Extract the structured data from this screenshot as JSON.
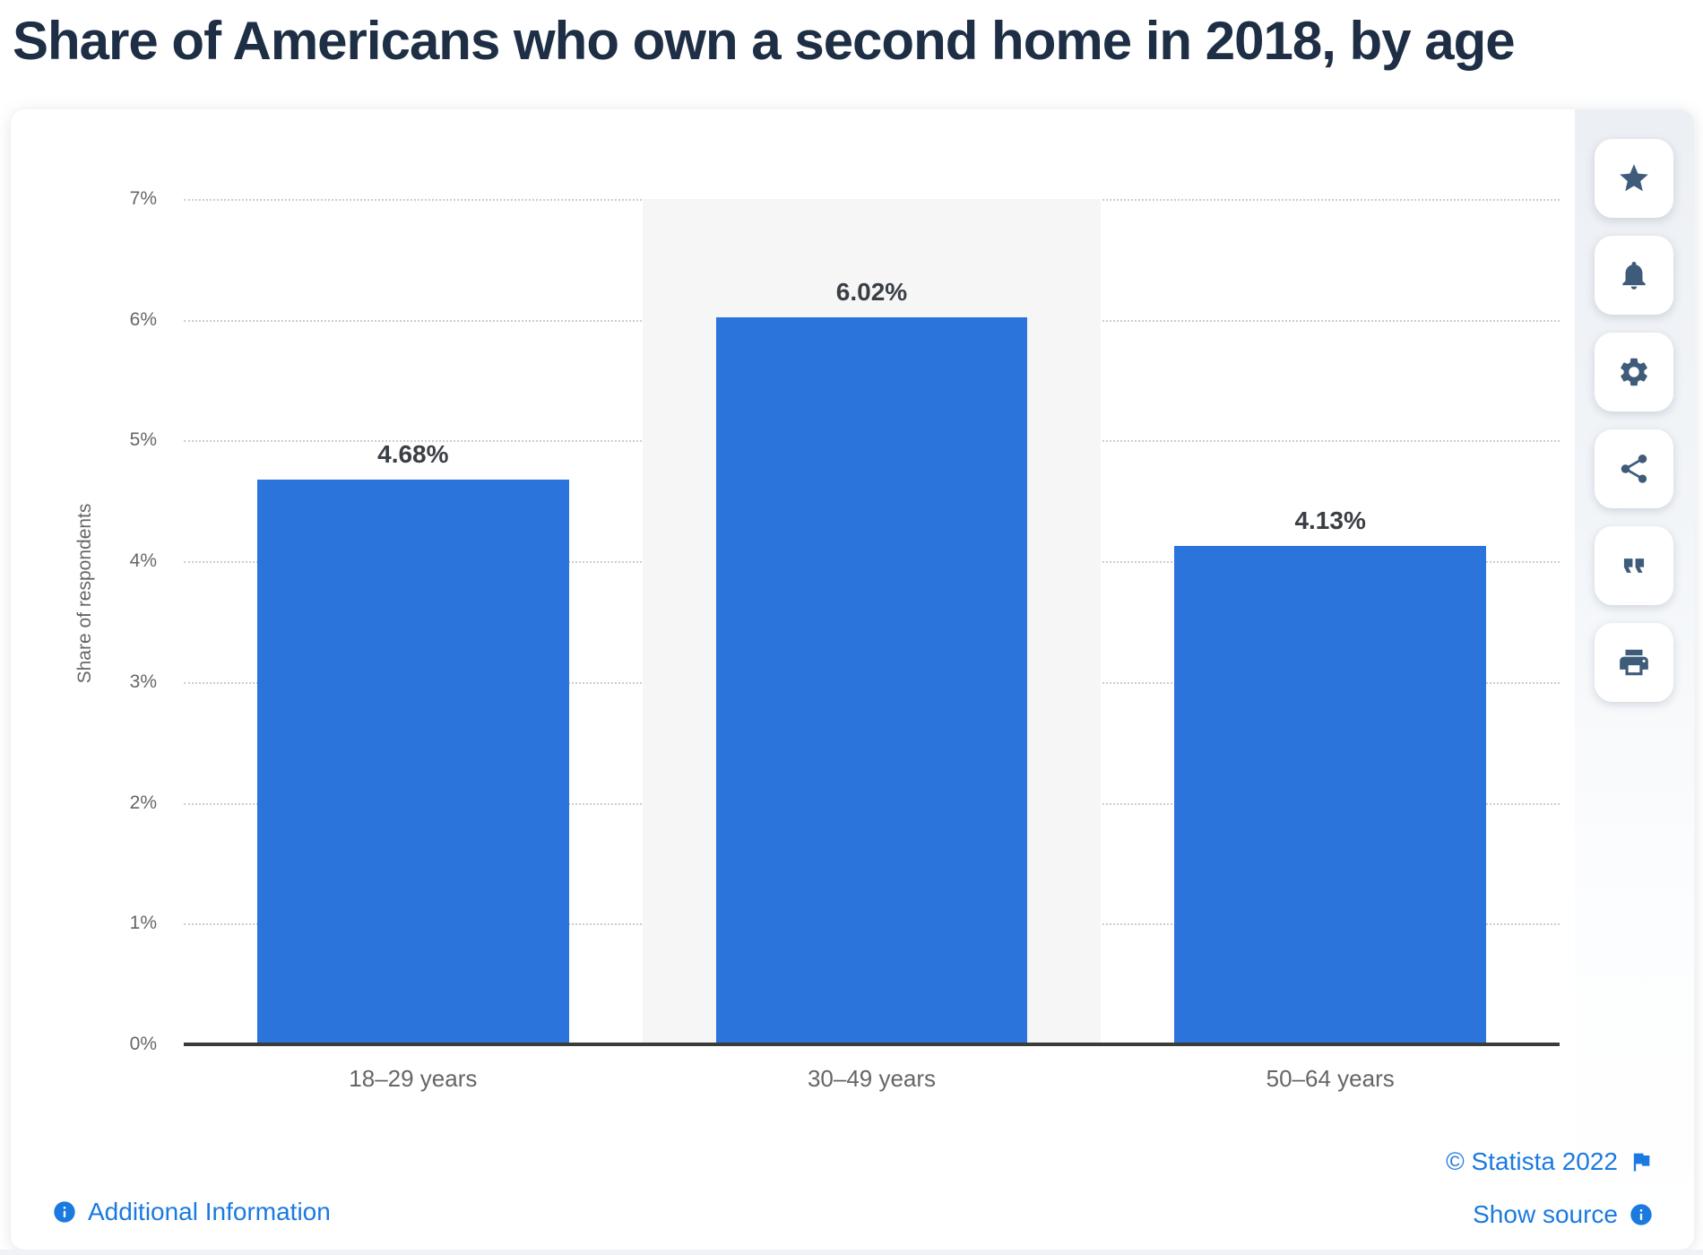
{
  "page": {
    "title": "Share of Americans who own a second home in 2018, by age"
  },
  "chart_data": {
    "type": "bar",
    "title": "Share of Americans who own a second home in 2018, by age",
    "categories": [
      "18–29 years",
      "30–49 years",
      "50–64 years"
    ],
    "values": [
      4.68,
      6.02,
      4.13
    ],
    "value_labels": [
      "4.68%",
      "6.02%",
      "4.13%"
    ],
    "xlabel": "",
    "ylabel": "Share of respondents",
    "ylim": [
      0,
      7
    ],
    "yticks": [
      "0%",
      "1%",
      "2%",
      "3%",
      "4%",
      "5%",
      "6%",
      "7%"
    ],
    "grid": "horizontal-dotted",
    "legend": false,
    "highlighted_category_index": 1,
    "colors": {
      "bar": "#2b74db",
      "plot_band": "#f6f6f7",
      "gridline": "#cccccc",
      "axis_line": "#3b3b3b",
      "tick_text": "#666666",
      "value_label_text": "#3a3f45"
    }
  },
  "toolbar": {
    "buttons": [
      {
        "name": "favorite-button",
        "icon": "star-icon"
      },
      {
        "name": "alerts-button",
        "icon": "bell-icon"
      },
      {
        "name": "settings-button",
        "icon": "gear-icon"
      },
      {
        "name": "share-button",
        "icon": "share-icon"
      },
      {
        "name": "cite-button",
        "icon": "quote-icon"
      },
      {
        "name": "print-button",
        "icon": "printer-icon"
      }
    ]
  },
  "footer": {
    "additional_information": "Additional Information",
    "copyright": "© Statista 2022",
    "show_source": "Show source"
  },
  "theme": {
    "accent_blue": "#1b7ae0",
    "icon_slate": "#3e5c7a",
    "title_color": "#1d2e45"
  }
}
